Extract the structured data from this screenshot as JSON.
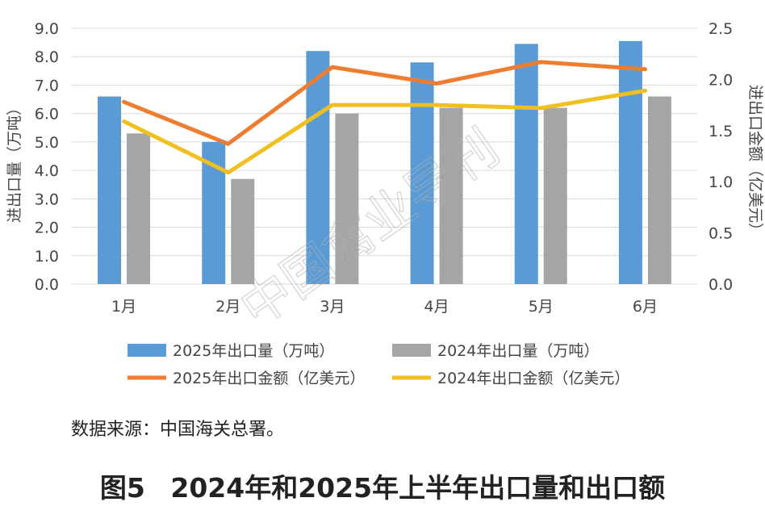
{
  "chart_data": {
    "type": "bar",
    "categories": [
      "1月",
      "2月",
      "3月",
      "4月",
      "5月",
      "6月"
    ],
    "y_left": {
      "label": "进出口量（万吨）",
      "ylim": [
        0,
        9
      ],
      "ticks": [
        "0.0",
        "1.0",
        "2.0",
        "3.0",
        "4.0",
        "5.0",
        "6.0",
        "7.0",
        "8.0",
        "9.0"
      ]
    },
    "y_right": {
      "label": "进出口金额（亿美元）",
      "ylim": [
        0,
        2.5
      ],
      "ticks": [
        "0.0",
        "0.5",
        "1.0",
        "1.5",
        "2.0",
        "2.5"
      ]
    },
    "grid": true,
    "legend_position": "bottom",
    "bar_series": [
      {
        "name": "2025年出口量（万吨）",
        "values": [
          6.6,
          5.0,
          8.2,
          7.8,
          8.45,
          8.55
        ],
        "color": "#5b9bd5",
        "axis": "left"
      },
      {
        "name": "2024年出口量（万吨）",
        "values": [
          5.3,
          3.7,
          6.0,
          6.2,
          6.2,
          6.6
        ],
        "color": "#a5a5a5",
        "axis": "left"
      }
    ],
    "line_series": [
      {
        "name": "2025年出口金额（亿美元）",
        "values": [
          1.78,
          1.37,
          2.12,
          1.96,
          2.17,
          2.1
        ],
        "color": "#ed7d31",
        "axis": "right"
      },
      {
        "name": "2024年出口金额（亿美元）",
        "values": [
          1.59,
          1.09,
          1.75,
          1.75,
          1.72,
          1.89
        ],
        "color": "#f0c020",
        "axis": "right"
      }
    ]
  },
  "watermark": "中国禽业导刊",
  "source_label": "数据来源：中国海关总署。",
  "figure_number": "图5",
  "figure_title": "2024年和2025年上半年出口量和出口额"
}
